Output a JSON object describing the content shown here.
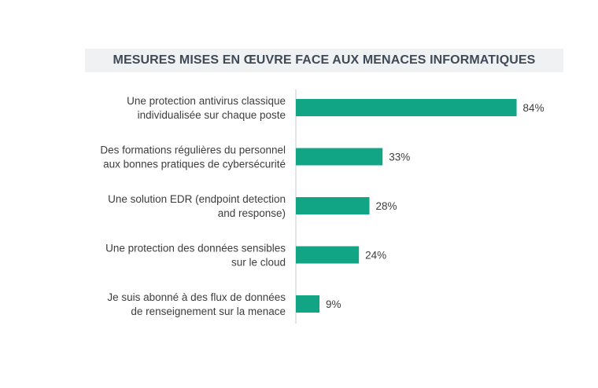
{
  "chart_data": {
    "type": "bar",
    "orientation": "horizontal",
    "title": "MESURES MISES EN ŒUVRE FACE AUX MENACES INFORMATIQUES",
    "categories": [
      [
        "Une protection antivirus classique",
        "individualisée sur chaque poste"
      ],
      [
        "Des formations régulières du personnel",
        "aux bonnes pratiques de cybersécurité"
      ],
      [
        "Une solution EDR (endpoint detection",
        "and response)"
      ],
      [
        "Une protection des données sensibles",
        "sur le cloud"
      ],
      [
        "Je suis abonné à des flux de données",
        "de renseignement sur la menace"
      ]
    ],
    "values": [
      84,
      33,
      28,
      24,
      9
    ],
    "value_labels": [
      "84%",
      "33%",
      "28%",
      "24%",
      "9%"
    ],
    "unit": "%",
    "xlim": [
      0,
      100
    ],
    "grid": false,
    "bar_color": "#11a585",
    "axis_color": "#c8c8c8",
    "title_band_color": "#f0f1f2",
    "title_color": "#3f4a57"
  }
}
